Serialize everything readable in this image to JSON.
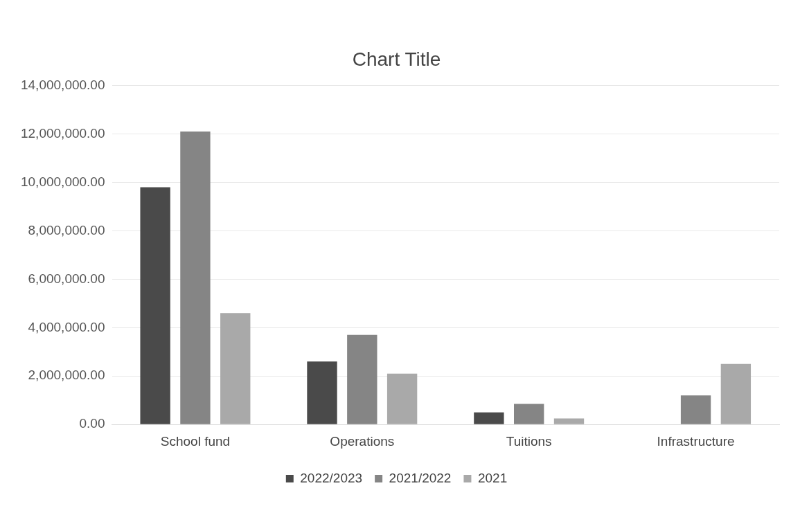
{
  "chart_data": {
    "type": "bar",
    "title": "Chart Title",
    "categories": [
      "School fund",
      "Operations",
      "Tuitions",
      "Infrastructure"
    ],
    "series": [
      {
        "name": "2022/2023",
        "color": "#4a4a4a",
        "values": [
          9800000,
          2600000,
          500000,
          null
        ]
      },
      {
        "name": "2021/2022",
        "color": "#858585",
        "values": [
          12100000,
          3700000,
          850000,
          1200000
        ]
      },
      {
        "name": "2021",
        "color": "#a9a9a9",
        "values": [
          4600000,
          2100000,
          250000,
          2500000
        ]
      }
    ],
    "ylim": [
      0,
      14000000
    ],
    "yticks": [
      {
        "value": 0,
        "label": "0.00"
      },
      {
        "value": 2000000,
        "label": "2,000,000.00"
      },
      {
        "value": 4000000,
        "label": "4,000,000.00"
      },
      {
        "value": 6000000,
        "label": "6,000,000.00"
      },
      {
        "value": 8000000,
        "label": "8,000,000.00"
      },
      {
        "value": 10000000,
        "label": "10,000,000.00"
      },
      {
        "value": 12000000,
        "label": "12,000,000.00"
      },
      {
        "value": 14000000,
        "label": "14,000,000.00"
      }
    ],
    "grid": "y",
    "legend": "bottom"
  }
}
